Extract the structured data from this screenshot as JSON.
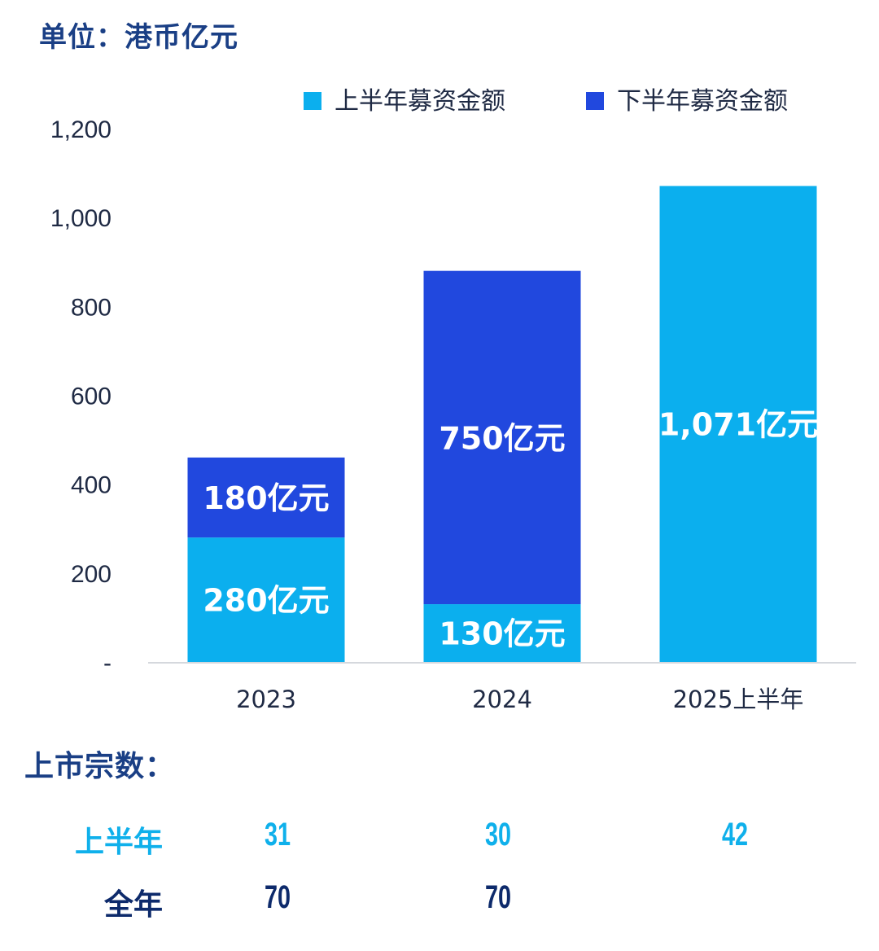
{
  "unit_label": "单位：港币亿元",
  "chart_data": {
    "type": "bar",
    "stacked": true,
    "categories": [
      "2023",
      "2024",
      "2025上半年"
    ],
    "series": [
      {
        "name": "上半年募资金额",
        "color": "#0bafee",
        "values": [
          280,
          130,
          1071
        ],
        "labels": [
          "280亿元",
          "130亿元",
          "1,071亿元"
        ]
      },
      {
        "name": "下半年募资金额",
        "color": "#2148de",
        "values": [
          180,
          750,
          0
        ],
        "labels": [
          "180亿元",
          "750亿元",
          ""
        ]
      }
    ],
    "ylim": [
      0,
      1200
    ],
    "yticks": [
      0,
      200,
      400,
      600,
      800,
      1000,
      1200
    ],
    "ytick_labels": [
      "-",
      "200",
      "400",
      "600",
      "800",
      "1,000",
      "1,200"
    ],
    "legend_position": "top-right",
    "grid": false
  },
  "listings": {
    "title": "上市宗数：",
    "rows": [
      {
        "label": "上半年",
        "values": [
          "31",
          "30",
          "42"
        ]
      },
      {
        "label": "全年",
        "values": [
          "70",
          "70",
          ""
        ]
      }
    ]
  }
}
